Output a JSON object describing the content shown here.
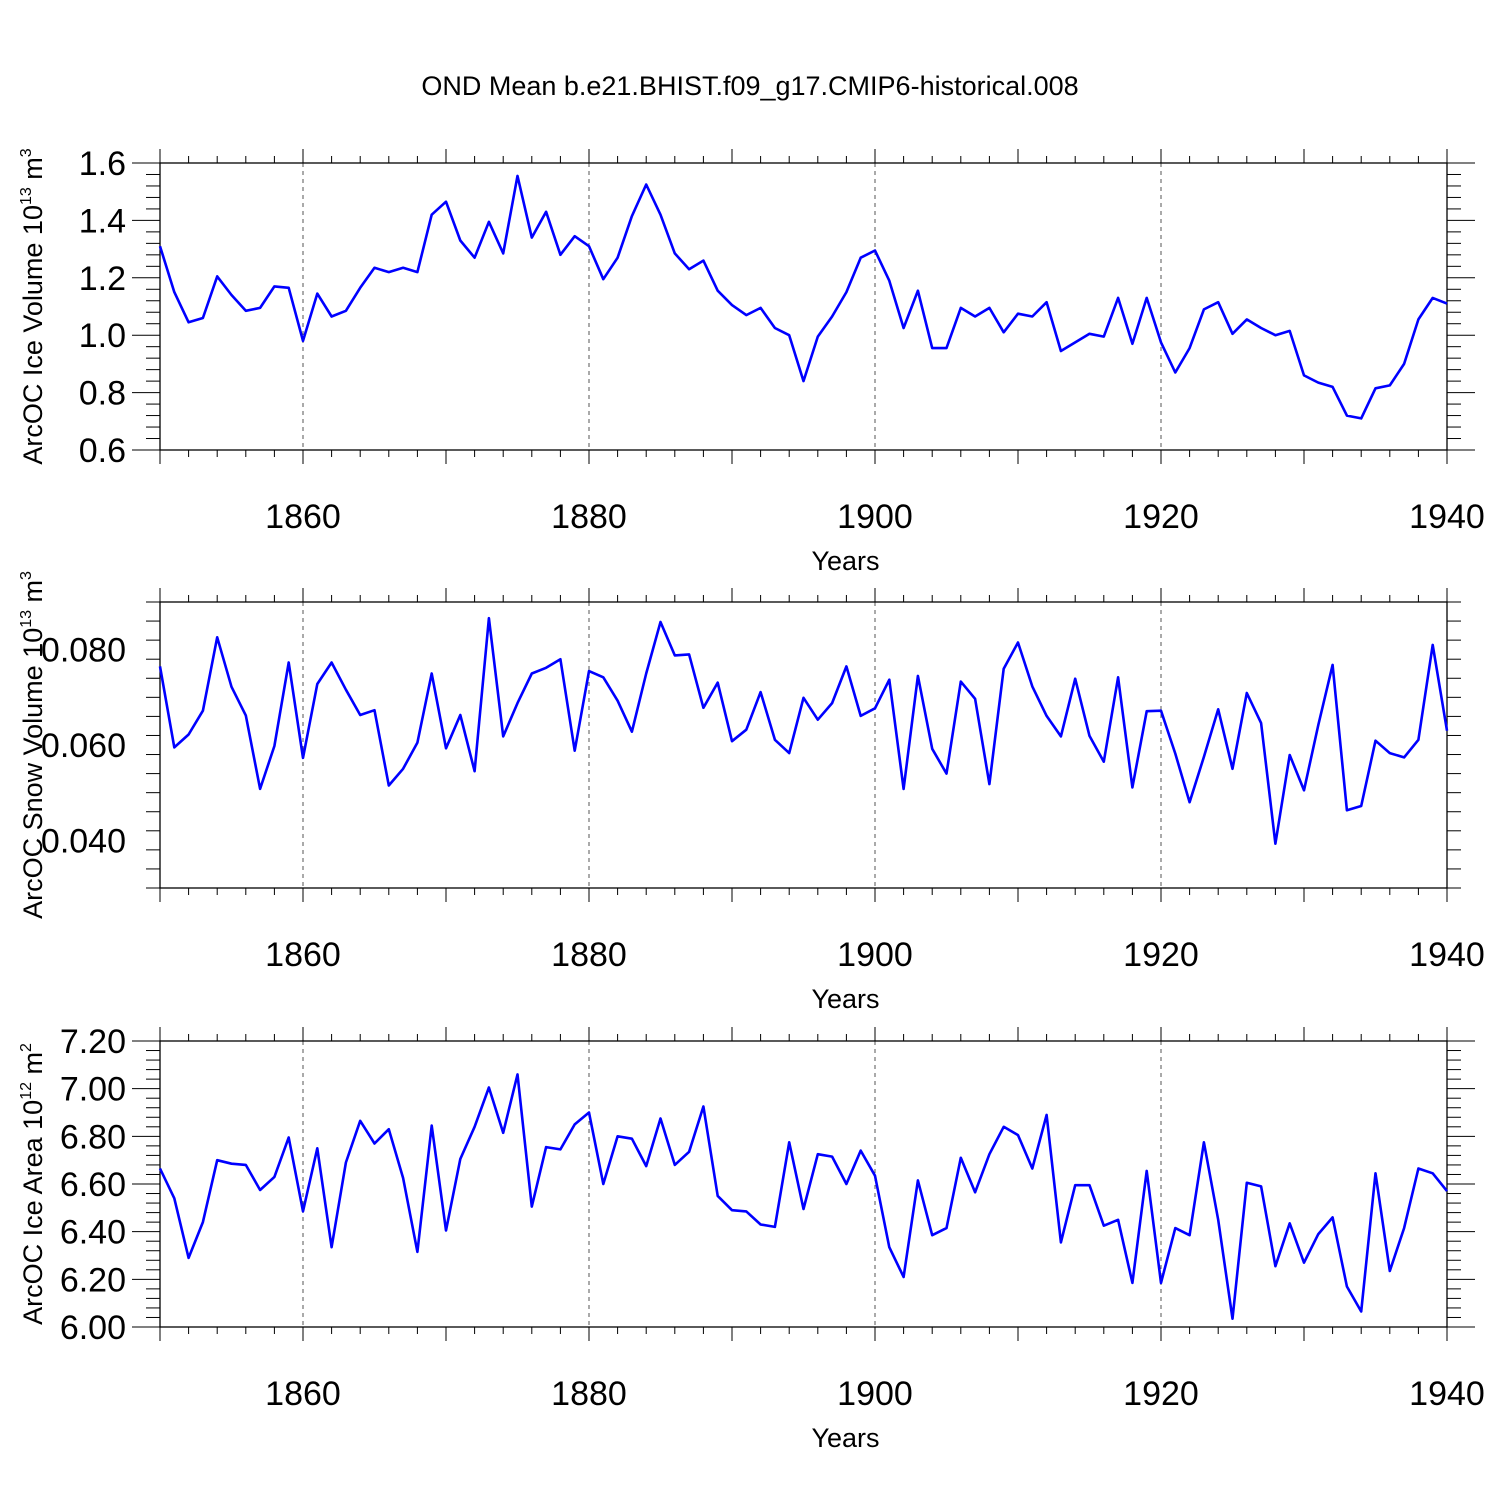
{
  "title": "OND Mean b.e21.BHIST.f09_g17.CMIP6-historical.008",
  "line_color": "#0000ff",
  "chart_data": [
    {
      "type": "line",
      "ylabel": "ArcOC Ice Volume 10",
      "ylabel_exp": "13",
      "ylabel_unit": " m",
      "ylabel_unit_exp": "3",
      "xlabel": "Years",
      "xlim": [
        1850,
        1940
      ],
      "ylim": [
        0.6,
        1.6
      ],
      "xticks": [
        "1860",
        "1880",
        "1900",
        "1920",
        "1940"
      ],
      "yticks": [
        "0.6",
        "0.8",
        "1.0",
        "1.2",
        "1.4",
        "1.6"
      ],
      "x": [
        1850,
        1851,
        1852,
        1853,
        1854,
        1855,
        1856,
        1857,
        1858,
        1859,
        1860,
        1861,
        1862,
        1863,
        1864,
        1865,
        1866,
        1867,
        1868,
        1869,
        1870,
        1871,
        1872,
        1873,
        1874,
        1875,
        1876,
        1877,
        1878,
        1879,
        1880,
        1881,
        1882,
        1883,
        1884,
        1885,
        1886,
        1887,
        1888,
        1889,
        1890,
        1891,
        1892,
        1893,
        1894,
        1895,
        1896,
        1897,
        1898,
        1899,
        1900,
        1901,
        1902,
        1903,
        1904,
        1905,
        1906,
        1907,
        1908,
        1909,
        1910,
        1911,
        1912,
        1913,
        1914,
        1915,
        1916,
        1917,
        1918,
        1919,
        1920,
        1921,
        1922,
        1923,
        1924,
        1925,
        1926,
        1927,
        1928,
        1929,
        1930,
        1931,
        1932,
        1933,
        1934,
        1935,
        1936,
        1937,
        1938,
        1939,
        1940
      ],
      "values": [
        1.31,
        1.15,
        1.045,
        1.06,
        1.205,
        1.14,
        1.085,
        1.095,
        1.17,
        1.165,
        0.98,
        1.145,
        1.065,
        1.085,
        1.165,
        1.235,
        1.22,
        1.235,
        1.22,
        1.42,
        1.465,
        1.33,
        1.27,
        1.395,
        1.285,
        1.555,
        1.34,
        1.43,
        1.28,
        1.345,
        1.31,
        1.195,
        1.27,
        1.415,
        1.525,
        1.42,
        1.285,
        1.23,
        1.26,
        1.155,
        1.105,
        1.07,
        1.095,
        1.025,
        1.0,
        0.84,
        0.995,
        1.065,
        1.15,
        1.27,
        1.295,
        1.19,
        1.025,
        1.155,
        0.955,
        0.955,
        1.095,
        1.065,
        1.095,
        1.01,
        1.075,
        1.065,
        1.115,
        0.945,
        0.975,
        1.005,
        0.995,
        1.13,
        0.97,
        1.13,
        0.975,
        0.87,
        0.955,
        1.09,
        1.115,
        1.005,
        1.055,
        1.025,
        1.0,
        1.015,
        0.86,
        0.835,
        0.82,
        0.72,
        0.71,
        0.815,
        0.825,
        0.9,
        1.055,
        1.13,
        1.11
      ]
    },
    {
      "type": "line",
      "ylabel": "ArcOC Snow Volume 10",
      "ylabel_exp": "13",
      "ylabel_unit": " m",
      "ylabel_unit_exp": "3",
      "xlabel": "Years",
      "xlim": [
        1850,
        1940
      ],
      "ylim": [
        0.03,
        0.09
      ],
      "xticks": [
        "1860",
        "1880",
        "1900",
        "1920",
        "1940"
      ],
      "yticks": [
        "0.040",
        "0.060",
        "0.080"
      ],
      "x": [
        1850,
        1851,
        1852,
        1853,
        1854,
        1855,
        1856,
        1857,
        1858,
        1859,
        1860,
        1861,
        1862,
        1863,
        1864,
        1865,
        1866,
        1867,
        1868,
        1869,
        1870,
        1871,
        1872,
        1873,
        1874,
        1875,
        1876,
        1877,
        1878,
        1879,
        1880,
        1881,
        1882,
        1883,
        1884,
        1885,
        1886,
        1887,
        1888,
        1889,
        1890,
        1891,
        1892,
        1893,
        1894,
        1895,
        1896,
        1897,
        1898,
        1899,
        1900,
        1901,
        1902,
        1903,
        1904,
        1905,
        1906,
        1907,
        1908,
        1909,
        1910,
        1911,
        1912,
        1913,
        1914,
        1915,
        1916,
        1917,
        1918,
        1919,
        1920,
        1921,
        1922,
        1923,
        1924,
        1925,
        1926,
        1927,
        1928,
        1929,
        1930,
        1931,
        1932,
        1933,
        1934,
        1935,
        1936,
        1937,
        1938,
        1939,
        1940
      ],
      "values": [
        0.0765,
        0.0595,
        0.0622,
        0.0672,
        0.0826,
        0.0722,
        0.0662,
        0.0508,
        0.0598,
        0.0773,
        0.0573,
        0.0728,
        0.0773,
        0.0716,
        0.0663,
        0.0673,
        0.0515,
        0.055,
        0.0605,
        0.075,
        0.0593,
        0.0663,
        0.0545,
        0.0866,
        0.0618,
        0.0688,
        0.075,
        0.0762,
        0.078,
        0.0588,
        0.0755,
        0.0742,
        0.0693,
        0.0628,
        0.075,
        0.0858,
        0.0788,
        0.079,
        0.0678,
        0.0731,
        0.0608,
        0.0632,
        0.0711,
        0.0611,
        0.0583,
        0.0699,
        0.0653,
        0.0688,
        0.0765,
        0.0661,
        0.0677,
        0.0737,
        0.0508,
        0.0745,
        0.0592,
        0.054,
        0.0733,
        0.0697,
        0.0518,
        0.076,
        0.0815,
        0.0723,
        0.0661,
        0.0618,
        0.0739,
        0.0619,
        0.0565,
        0.0742,
        0.0511,
        0.0671,
        0.0672,
        0.0582,
        0.048,
        0.0575,
        0.0675,
        0.055,
        0.0709,
        0.0646,
        0.0393,
        0.0579,
        0.0505,
        0.0642,
        0.0768,
        0.0463,
        0.0472,
        0.0609,
        0.0583,
        0.0574,
        0.0611,
        0.081,
        0.063
      ]
    },
    {
      "type": "line",
      "ylabel": "ArcOC Ice Area 10",
      "ylabel_exp": "12",
      "ylabel_unit": " m",
      "ylabel_unit_exp": "2",
      "xlabel": "Years",
      "xlim": [
        1850,
        1940
      ],
      "ylim": [
        6.0,
        7.2
      ],
      "xticks": [
        "1860",
        "1880",
        "1900",
        "1920",
        "1940"
      ],
      "yticks": [
        "6.00",
        "6.20",
        "6.40",
        "6.60",
        "6.80",
        "7.00",
        "7.20"
      ],
      "x": [
        1850,
        1851,
        1852,
        1853,
        1854,
        1855,
        1856,
        1857,
        1858,
        1859,
        1860,
        1861,
        1862,
        1863,
        1864,
        1865,
        1866,
        1867,
        1868,
        1869,
        1870,
        1871,
        1872,
        1873,
        1874,
        1875,
        1876,
        1877,
        1878,
        1879,
        1880,
        1881,
        1882,
        1883,
        1884,
        1885,
        1886,
        1887,
        1888,
        1889,
        1890,
        1891,
        1892,
        1893,
        1894,
        1895,
        1896,
        1897,
        1898,
        1899,
        1900,
        1901,
        1902,
        1903,
        1904,
        1905,
        1906,
        1907,
        1908,
        1909,
        1910,
        1911,
        1912,
        1913,
        1914,
        1915,
        1916,
        1917,
        1918,
        1919,
        1920,
        1921,
        1922,
        1923,
        1924,
        1925,
        1926,
        1927,
        1928,
        1929,
        1930,
        1931,
        1932,
        1933,
        1934,
        1935,
        1936,
        1937,
        1938,
        1939,
        1940
      ],
      "values": [
        6.665,
        6.54,
        6.29,
        6.44,
        6.7,
        6.685,
        6.68,
        6.575,
        6.63,
        6.795,
        6.485,
        6.75,
        6.335,
        6.69,
        6.865,
        6.77,
        6.83,
        6.625,
        6.315,
        6.845,
        6.405,
        6.705,
        6.84,
        7.005,
        6.815,
        7.06,
        6.505,
        6.755,
        6.745,
        6.85,
        6.9,
        6.6,
        6.8,
        6.79,
        6.675,
        6.875,
        6.68,
        6.735,
        6.925,
        6.55,
        6.49,
        6.485,
        6.43,
        6.42,
        6.775,
        6.495,
        6.725,
        6.715,
        6.6,
        6.74,
        6.635,
        6.335,
        6.21,
        6.615,
        6.385,
        6.415,
        6.71,
        6.565,
        6.725,
        6.84,
        6.805,
        6.665,
        6.89,
        6.355,
        6.595,
        6.595,
        6.425,
        6.45,
        6.185,
        6.655,
        6.185,
        6.415,
        6.385,
        6.775,
        6.45,
        6.035,
        6.605,
        6.59,
        6.255,
        6.435,
        6.27,
        6.39,
        6.46,
        6.17,
        6.065,
        6.645,
        6.235,
        6.415,
        6.665,
        6.645,
        6.57
      ]
    }
  ]
}
